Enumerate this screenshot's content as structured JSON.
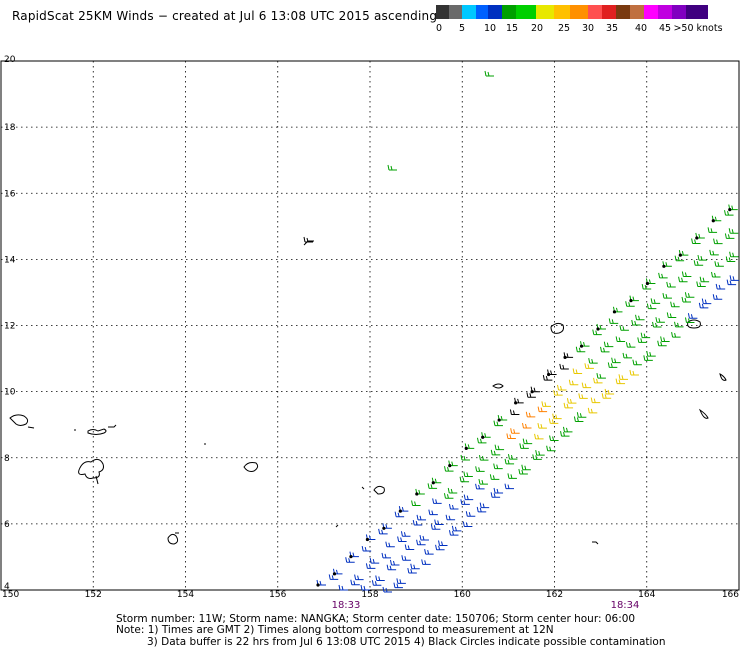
{
  "title": "RapidScat 25KM Winds − created at Jul  6 13:08 UTC 2015 ascending",
  "legend": {
    "colors": [
      "#333333",
      "#6a6a6a",
      "#00c8ff",
      "#0060ff",
      "#0030c0",
      "#00a000",
      "#00d000",
      "#e8e800",
      "#ffc000",
      "#ff9000",
      "#ff5050",
      "#e02020",
      "#7a3a10",
      "#c07040",
      "#ff00ff",
      "#c000e0",
      "#8000c0",
      "#400080"
    ],
    "labels": [
      "0",
      "5",
      "10",
      "15",
      "20",
      "25",
      "30",
      "35",
      "40",
      "45",
      ">50 knots"
    ]
  },
  "axes": {
    "x_ticks": [
      "150",
      "152",
      "154",
      "156",
      "158",
      "160",
      "162",
      "164",
      "166"
    ],
    "y_ticks": [
      "4",
      "6",
      "8",
      "10",
      "12",
      "14",
      "16",
      "18",
      "20"
    ]
  },
  "time_labels": [
    "18:33",
    "18:34"
  ],
  "footer": {
    "line1": "Storm number: 11W;  Storm name: NANGKA;  Storm center date: 150706;  Storm center hour: 06:00",
    "line2": "Note: 1) Times are GMT  2) Times along bottom correspond to measurement at 12N",
    "line3": "3) Data buffer is 22 hrs from Jul  6 13:08 UTC 2015  4) Black Circles indicate possible contamination"
  }
}
